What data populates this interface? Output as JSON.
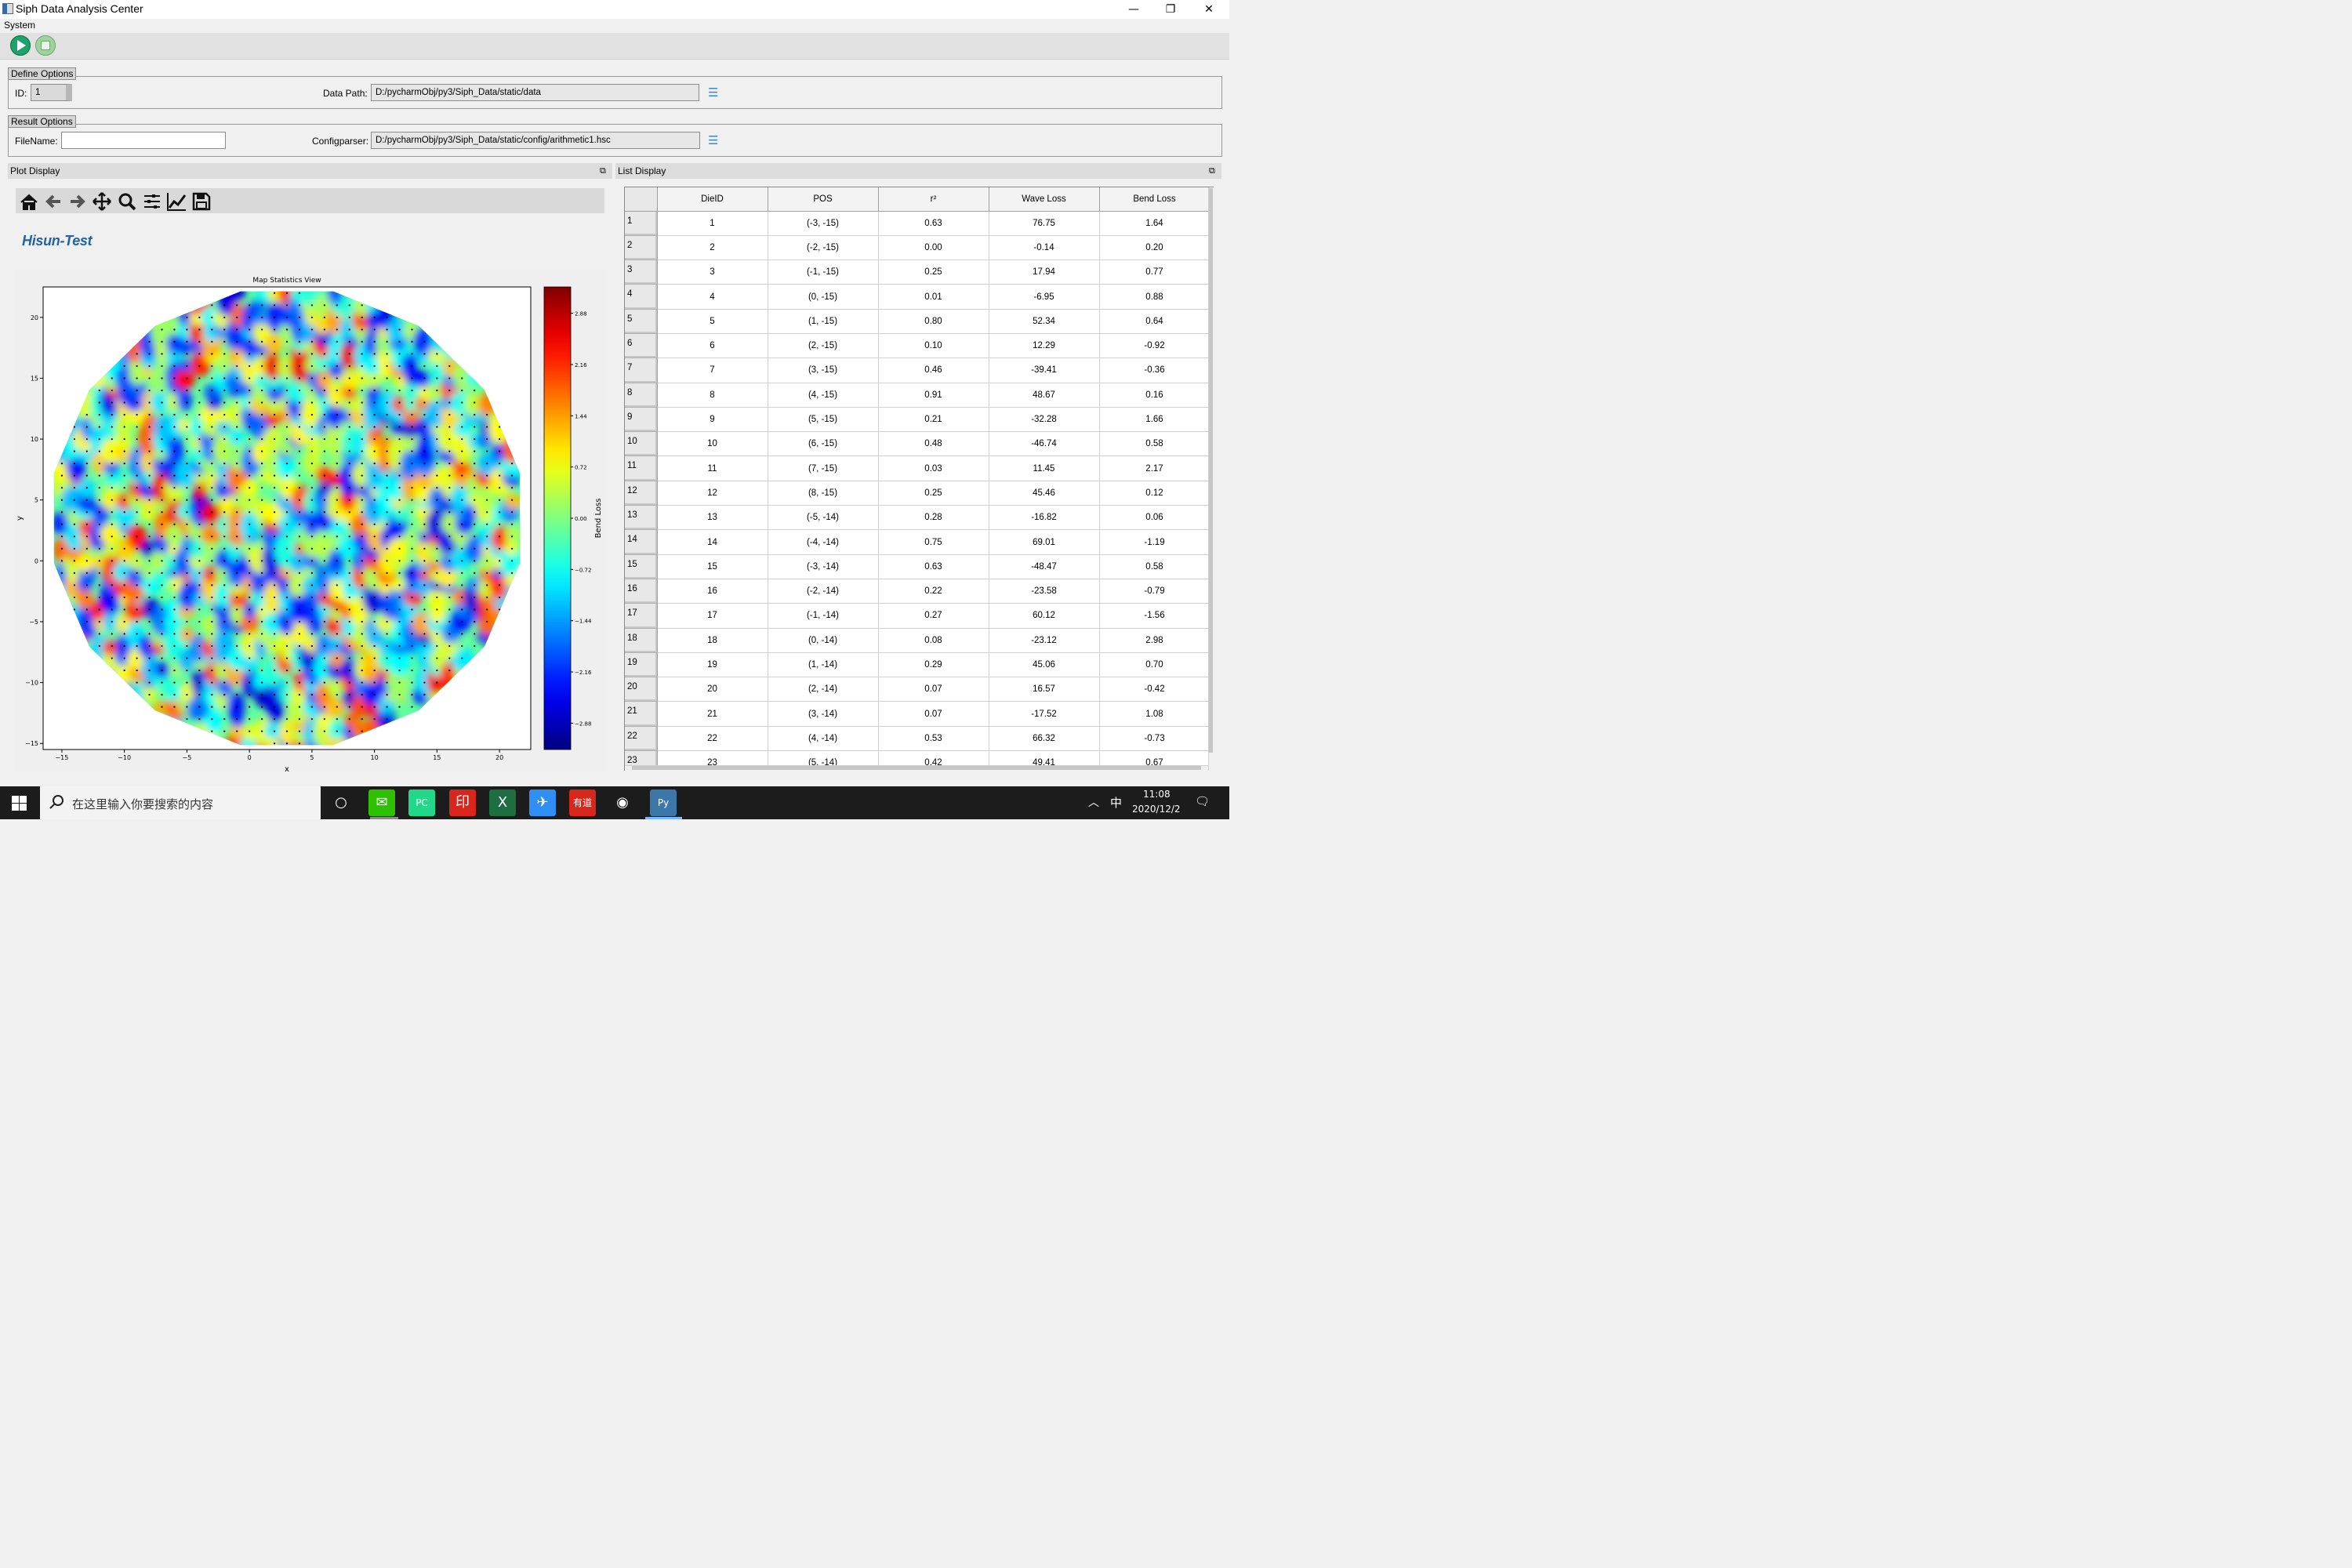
{
  "window": {
    "title": "Siph Data Analysis Center",
    "minimize": "—",
    "restore": "❐",
    "close": "✕"
  },
  "menu": {
    "system": "System"
  },
  "toolbar": {
    "start_icon": "play-icon",
    "stop_icon": "stop-icon"
  },
  "define_options": {
    "title": "Define Options",
    "id_label": "ID:",
    "id_value": "1",
    "data_path_label": "Data Path:",
    "data_path_value": "D:/pycharmObj/py3/Siph_Data/static/data"
  },
  "result_options": {
    "title": "Result Options",
    "filename_label": "FileName:",
    "filename_value": "",
    "configparser_label": "Configparser:",
    "configparser_value": "D:/pycharmObj/py3/Siph_Data/static/config/arithmetic1.hsc"
  },
  "browse_icon": "☰",
  "plot_display": {
    "title": "Plot Display",
    "float_icon": "⧉",
    "nav_tools": [
      "home-icon",
      "back-icon",
      "forward-icon",
      "pan-icon",
      "zoom-icon",
      "subplots-icon",
      "edit-axis-icon",
      "save-icon"
    ],
    "brand": "Hisun-Test"
  },
  "chart_data": {
    "type": "heatmap",
    "title": "Map Statistics View",
    "xlabel": "x",
    "ylabel": "y",
    "xlim": [
      -16.5,
      22.5
    ],
    "ylim": [
      -15.5,
      22.5
    ],
    "xticks": [
      -15,
      -10,
      -5,
      0,
      5,
      10,
      15,
      20
    ],
    "yticks": [
      -15,
      -10,
      -5,
      0,
      5,
      10,
      15,
      20
    ],
    "colorbar_label": "Bend Loss",
    "colorbar_range": [
      -3.25,
      3.25
    ],
    "colorbar_ticks": [
      "2.88",
      "2.16",
      "1.44",
      "0.72",
      "0.00",
      "−0.72",
      "−1.44",
      "−2.16",
      "−2.88"
    ],
    "colormap": "jet",
    "wafer_center": [
      3,
      3.5
    ],
    "wafer_radius": 19,
    "grid_step": 1,
    "point_marker": "black dots at integer die positions"
  },
  "list_display": {
    "title": "List Display",
    "float_icon": "⧉",
    "columns": [
      "DieID",
      "POS",
      "r²",
      "Wave Loss",
      "Bend Loss"
    ],
    "rows": [
      [
        "1",
        "1",
        "(-3, -15)",
        "0.63",
        "76.75",
        "1.64"
      ],
      [
        "2",
        "2",
        "(-2, -15)",
        "0.00",
        "-0.14",
        "0.20"
      ],
      [
        "3",
        "3",
        "(-1, -15)",
        "0.25",
        "17.94",
        "0.77"
      ],
      [
        "4",
        "4",
        "(0, -15)",
        "0.01",
        "-6.95",
        "0.88"
      ],
      [
        "5",
        "5",
        "(1, -15)",
        "0.80",
        "52.34",
        "0.64"
      ],
      [
        "6",
        "6",
        "(2, -15)",
        "0.10",
        "12.29",
        "-0.92"
      ],
      [
        "7",
        "7",
        "(3, -15)",
        "0.46",
        "-39.41",
        "-0.36"
      ],
      [
        "8",
        "8",
        "(4, -15)",
        "0.91",
        "48.67",
        "0.16"
      ],
      [
        "9",
        "9",
        "(5, -15)",
        "0.21",
        "-32.28",
        "1.66"
      ],
      [
        "10",
        "10",
        "(6, -15)",
        "0.48",
        "-46.74",
        "0.58"
      ],
      [
        "11",
        "11",
        "(7, -15)",
        "0.03",
        "11.45",
        "2.17"
      ],
      [
        "12",
        "12",
        "(8, -15)",
        "0.25",
        "45.46",
        "0.12"
      ],
      [
        "13",
        "13",
        "(-5, -14)",
        "0.28",
        "-16.82",
        "0.06"
      ],
      [
        "14",
        "14",
        "(-4, -14)",
        "0.75",
        "69.01",
        "-1.19"
      ],
      [
        "15",
        "15",
        "(-3, -14)",
        "0.63",
        "-48.47",
        "0.58"
      ],
      [
        "16",
        "16",
        "(-2, -14)",
        "0.22",
        "-23.58",
        "-0.79"
      ],
      [
        "17",
        "17",
        "(-1, -14)",
        "0.27",
        "60.12",
        "-1.56"
      ],
      [
        "18",
        "18",
        "(0, -14)",
        "0.08",
        "-23.12",
        "2.98"
      ],
      [
        "19",
        "19",
        "(1, -14)",
        "0.29",
        "45.06",
        "0.70"
      ],
      [
        "20",
        "20",
        "(2, -14)",
        "0.07",
        "16.57",
        "-0.42"
      ],
      [
        "21",
        "21",
        "(3, -14)",
        "0.07",
        "-17.52",
        "1.08"
      ],
      [
        "22",
        "22",
        "(4, -14)",
        "0.53",
        "66.32",
        "-0.73"
      ],
      [
        "23",
        "23",
        "(5, -14)",
        "0.42",
        "49.41",
        "0.67"
      ]
    ]
  },
  "taskbar": {
    "search_placeholder": "在这里输入你要搜索的内容",
    "apps": [
      {
        "name": "cortana",
        "color": "#1c1c1c",
        "glyph": "○"
      },
      {
        "name": "wechat",
        "color": "#2dc100",
        "glyph": "✉"
      },
      {
        "name": "pycharm",
        "color": "#21d789",
        "glyph": "PC"
      },
      {
        "name": "pdf-reader",
        "color": "#d9261c",
        "glyph": "印"
      },
      {
        "name": "excel",
        "color": "#1d6f42",
        "glyph": "X"
      },
      {
        "name": "feishu",
        "color": "#2f8ef3",
        "glyph": "✈"
      },
      {
        "name": "youdao",
        "color": "#d9261c",
        "glyph": "有道"
      },
      {
        "name": "chrome",
        "color": "#1c1c1c",
        "glyph": "◉"
      },
      {
        "name": "python",
        "color": "#3b77a8",
        "glyph": "Py"
      }
    ],
    "tray_caret": "︿",
    "ime": "中",
    "time": "11:08",
    "date": "2020/12/2",
    "notification_icon": "🗨"
  }
}
